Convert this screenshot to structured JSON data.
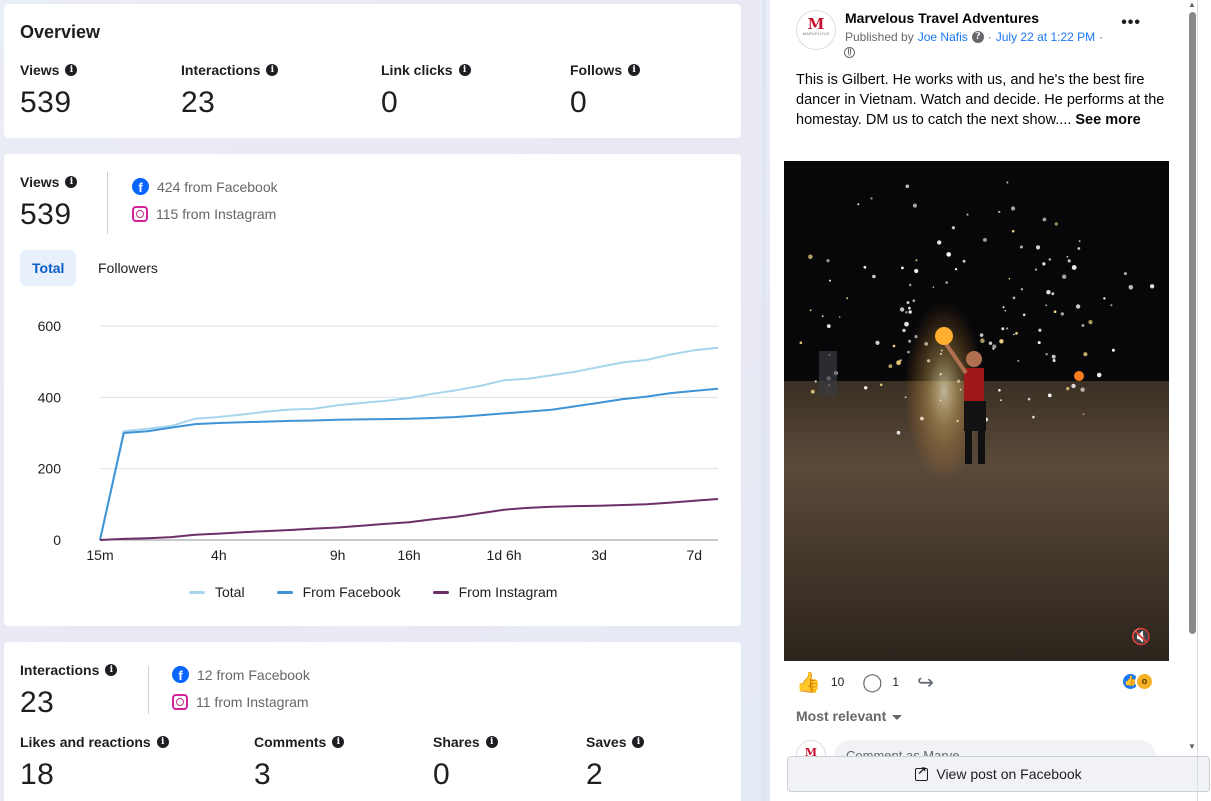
{
  "overview": {
    "title": "Overview",
    "metrics": [
      {
        "label": "Views",
        "value": "539"
      },
      {
        "label": "Interactions",
        "value": "23"
      },
      {
        "label": "Link clicks",
        "value": "0"
      },
      {
        "label": "Follows",
        "value": "0"
      }
    ]
  },
  "views": {
    "label": "Views",
    "value": "539",
    "from_facebook": "424 from Facebook",
    "from_instagram": "115 from Instagram",
    "tabs": [
      "Total",
      "Followers"
    ],
    "active_tab": "Total"
  },
  "chart_data": {
    "type": "line",
    "x_ticks": [
      "15m",
      "4h",
      "9h",
      "16h",
      "1d 6h",
      "3d",
      "7d"
    ],
    "ylim": [
      0,
      600
    ],
    "y_ticks": [
      0,
      200,
      400,
      600
    ],
    "grid": true,
    "legend_position": "bottom-center",
    "x": [
      "15m",
      "30m",
      "1h",
      "2h",
      "3h",
      "4h",
      "5h",
      "6h",
      "7h",
      "8h",
      "9h",
      "11h",
      "13h",
      "16h",
      "19h",
      "22h",
      "1d 2h",
      "1d 6h",
      "1d 12h",
      "2d",
      "2d 12h",
      "3d",
      "4d",
      "5d",
      "6d",
      "7d",
      "8d"
    ],
    "series": [
      {
        "name": "Total",
        "color": "#a7d5ee",
        "values": [
          0,
          305,
          312,
          320,
          340,
          345,
          352,
          360,
          366,
          368,
          378,
          384,
          390,
          398,
          410,
          420,
          432,
          448,
          452,
          462,
          472,
          485,
          498,
          505,
          520,
          532,
          539
        ]
      },
      {
        "name": "From Facebook",
        "color": "#3e94d6",
        "values": [
          0,
          300,
          305,
          315,
          325,
          328,
          330,
          332,
          334,
          335,
          337,
          338,
          339,
          340,
          342,
          345,
          350,
          355,
          360,
          365,
          375,
          385,
          395,
          402,
          412,
          418,
          424
        ]
      },
      {
        "name": "From Instagram",
        "color": "#6d2f6a",
        "values": [
          0,
          3,
          5,
          8,
          15,
          18,
          22,
          25,
          28,
          32,
          35,
          40,
          45,
          50,
          58,
          65,
          75,
          85,
          90,
          93,
          95,
          96,
          98,
          100,
          105,
          110,
          115
        ]
      }
    ]
  },
  "interactions": {
    "label": "Interactions",
    "value": "23",
    "from_facebook": "12 from Facebook",
    "from_instagram": "11 from Instagram",
    "metrics": [
      {
        "label": "Likes and reactions",
        "value": "18"
      },
      {
        "label": "Comments",
        "value": "3"
      },
      {
        "label": "Shares",
        "value": "0"
      },
      {
        "label": "Saves",
        "value": "2"
      }
    ]
  },
  "post": {
    "page_name": "Marvelous Travel Adventures",
    "published_by_prefix": "Published by",
    "author": "Joe Nafis",
    "date": "July 22 at 1:22 PM",
    "dot_sep": "·",
    "text": "This is Gilbert. He works with us, and he's the best fire dancer in Vietnam. Watch and decide. He performs at the homestay. DM us to catch the next show....",
    "see_more": "See more",
    "likes": "10",
    "comments": "1",
    "sort_label": "Most relevant",
    "comment_placeholder": "Comment as Marve...",
    "view_button": "View post on Facebook",
    "avatar_letter": "M",
    "avatar_sub": "MARVELOUS"
  },
  "colors": {
    "accent": "#0866ff",
    "instagram": "#d6249f"
  }
}
